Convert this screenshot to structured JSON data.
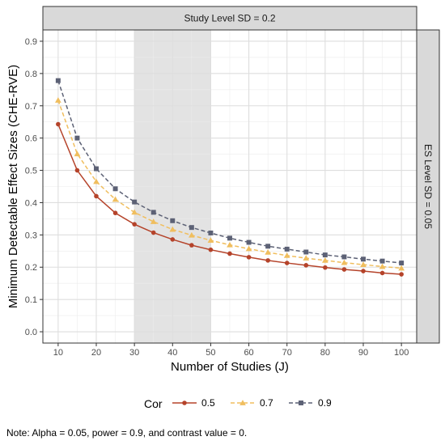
{
  "chart_data": {
    "type": "line",
    "facet_top": "Study Level SD = 0.2",
    "facet_right": "ES Level SD = 0.05",
    "xlabel": "Number of Studies (J)",
    "ylabel": "Minimum Detectable Effect Sizes (CHE-RVE)",
    "xlim": [
      6,
      104
    ],
    "ylim": [
      -0.035,
      0.935
    ],
    "x_ticks": [
      10,
      20,
      30,
      40,
      50,
      60,
      70,
      80,
      90,
      100
    ],
    "y_ticks": [
      0.0,
      0.1,
      0.2,
      0.3,
      0.4,
      0.5,
      0.6,
      0.7,
      0.8,
      0.9
    ],
    "y_tick_labels": [
      "0.0",
      "0.1",
      "0.2",
      "0.3",
      "0.4",
      "0.5",
      "0.6",
      "0.7",
      "0.8",
      "0.9"
    ],
    "x_tick_labels": [
      "10",
      "20",
      "30",
      "40",
      "50",
      "60",
      "70",
      "80",
      "90",
      "100"
    ],
    "shaded_region": [
      30,
      50
    ],
    "grid": true,
    "legend_position": "bottom",
    "legend_title": "Cor",
    "x": [
      10,
      15,
      20,
      25,
      30,
      35,
      40,
      45,
      50,
      55,
      60,
      65,
      70,
      75,
      80,
      85,
      90,
      95,
      100
    ],
    "series": [
      {
        "name": "0.5",
        "color": "#b5432a",
        "marker": "circle",
        "dash": "solid",
        "values": [
          0.643,
          0.5,
          0.42,
          0.368,
          0.333,
          0.307,
          0.286,
          0.268,
          0.254,
          0.242,
          0.231,
          0.221,
          0.213,
          0.206,
          0.199,
          0.193,
          0.188,
          0.182,
          0.178
        ]
      },
      {
        "name": "0.7",
        "color": "#f0be5e",
        "marker": "triangle",
        "dash": "dashed",
        "values": [
          0.717,
          0.551,
          0.465,
          0.41,
          0.37,
          0.341,
          0.317,
          0.299,
          0.283,
          0.269,
          0.257,
          0.246,
          0.236,
          0.228,
          0.221,
          0.214,
          0.208,
          0.202,
          0.197
        ]
      },
      {
        "name": "0.9",
        "color": "#5c6175",
        "marker": "square",
        "dash": "dashed",
        "values": [
          0.778,
          0.6,
          0.505,
          0.443,
          0.402,
          0.37,
          0.344,
          0.323,
          0.306,
          0.29,
          0.277,
          0.265,
          0.256,
          0.247,
          0.238,
          0.232,
          0.225,
          0.219,
          0.213
        ]
      }
    ],
    "note": "Note: Alpha = 0.05, power = 0.9, and contrast value = 0."
  }
}
